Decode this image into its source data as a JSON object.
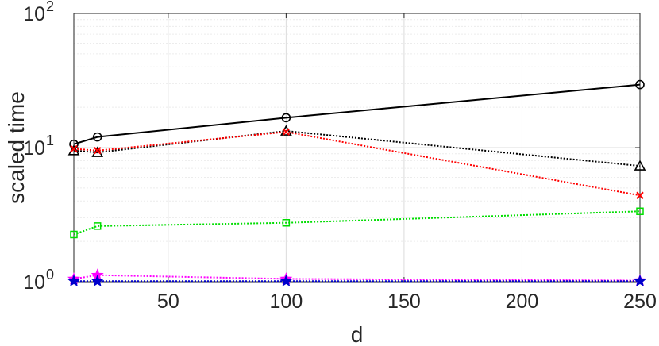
{
  "chart_data": {
    "type": "line",
    "xlabel": "d",
    "ylabel": "scaled time",
    "x": [
      10,
      20,
      100,
      250
    ],
    "xlim": [
      10,
      250
    ],
    "ylim": [
      1,
      100
    ],
    "yscale": "log",
    "grid": true,
    "x_ticks": [
      {
        "value": 50,
        "label": "50"
      },
      {
        "value": 100,
        "label": "100"
      },
      {
        "value": 150,
        "label": "150"
      },
      {
        "value": 200,
        "label": "200"
      },
      {
        "value": 250,
        "label": "250"
      }
    ],
    "y_ticks": [
      {
        "value": 1,
        "base": "10",
        "exp": "0"
      },
      {
        "value": 10,
        "base": "10",
        "exp": "1"
      },
      {
        "value": 100,
        "base": "10",
        "exp": "2"
      }
    ],
    "series": [
      {
        "values": [
          10.6,
          12.0,
          16.7,
          29.5
        ],
        "color": "#000000",
        "line": "solid",
        "marker": "circle"
      },
      {
        "values": [
          9.5,
          9.2,
          13.3,
          7.3
        ],
        "color": "#000000",
        "line": "dotted",
        "marker": "triangle"
      },
      {
        "values": [
          9.8,
          9.5,
          13.1,
          4.4
        ],
        "color": "#ff0000",
        "line": "dotted",
        "marker": "x"
      },
      {
        "values": [
          2.25,
          2.6,
          2.75,
          3.35
        ],
        "color": "#00dd00",
        "line": "dotted",
        "marker": "square"
      },
      {
        "values": [
          1.05,
          1.12,
          1.05,
          1.02
        ],
        "color": "#ff00ff",
        "line": "dotted",
        "marker": "star"
      },
      {
        "values": [
          1.01,
          1.01,
          1.01,
          1.01
        ],
        "color": "#0000cc",
        "line": "dotted",
        "marker": "star"
      }
    ]
  }
}
